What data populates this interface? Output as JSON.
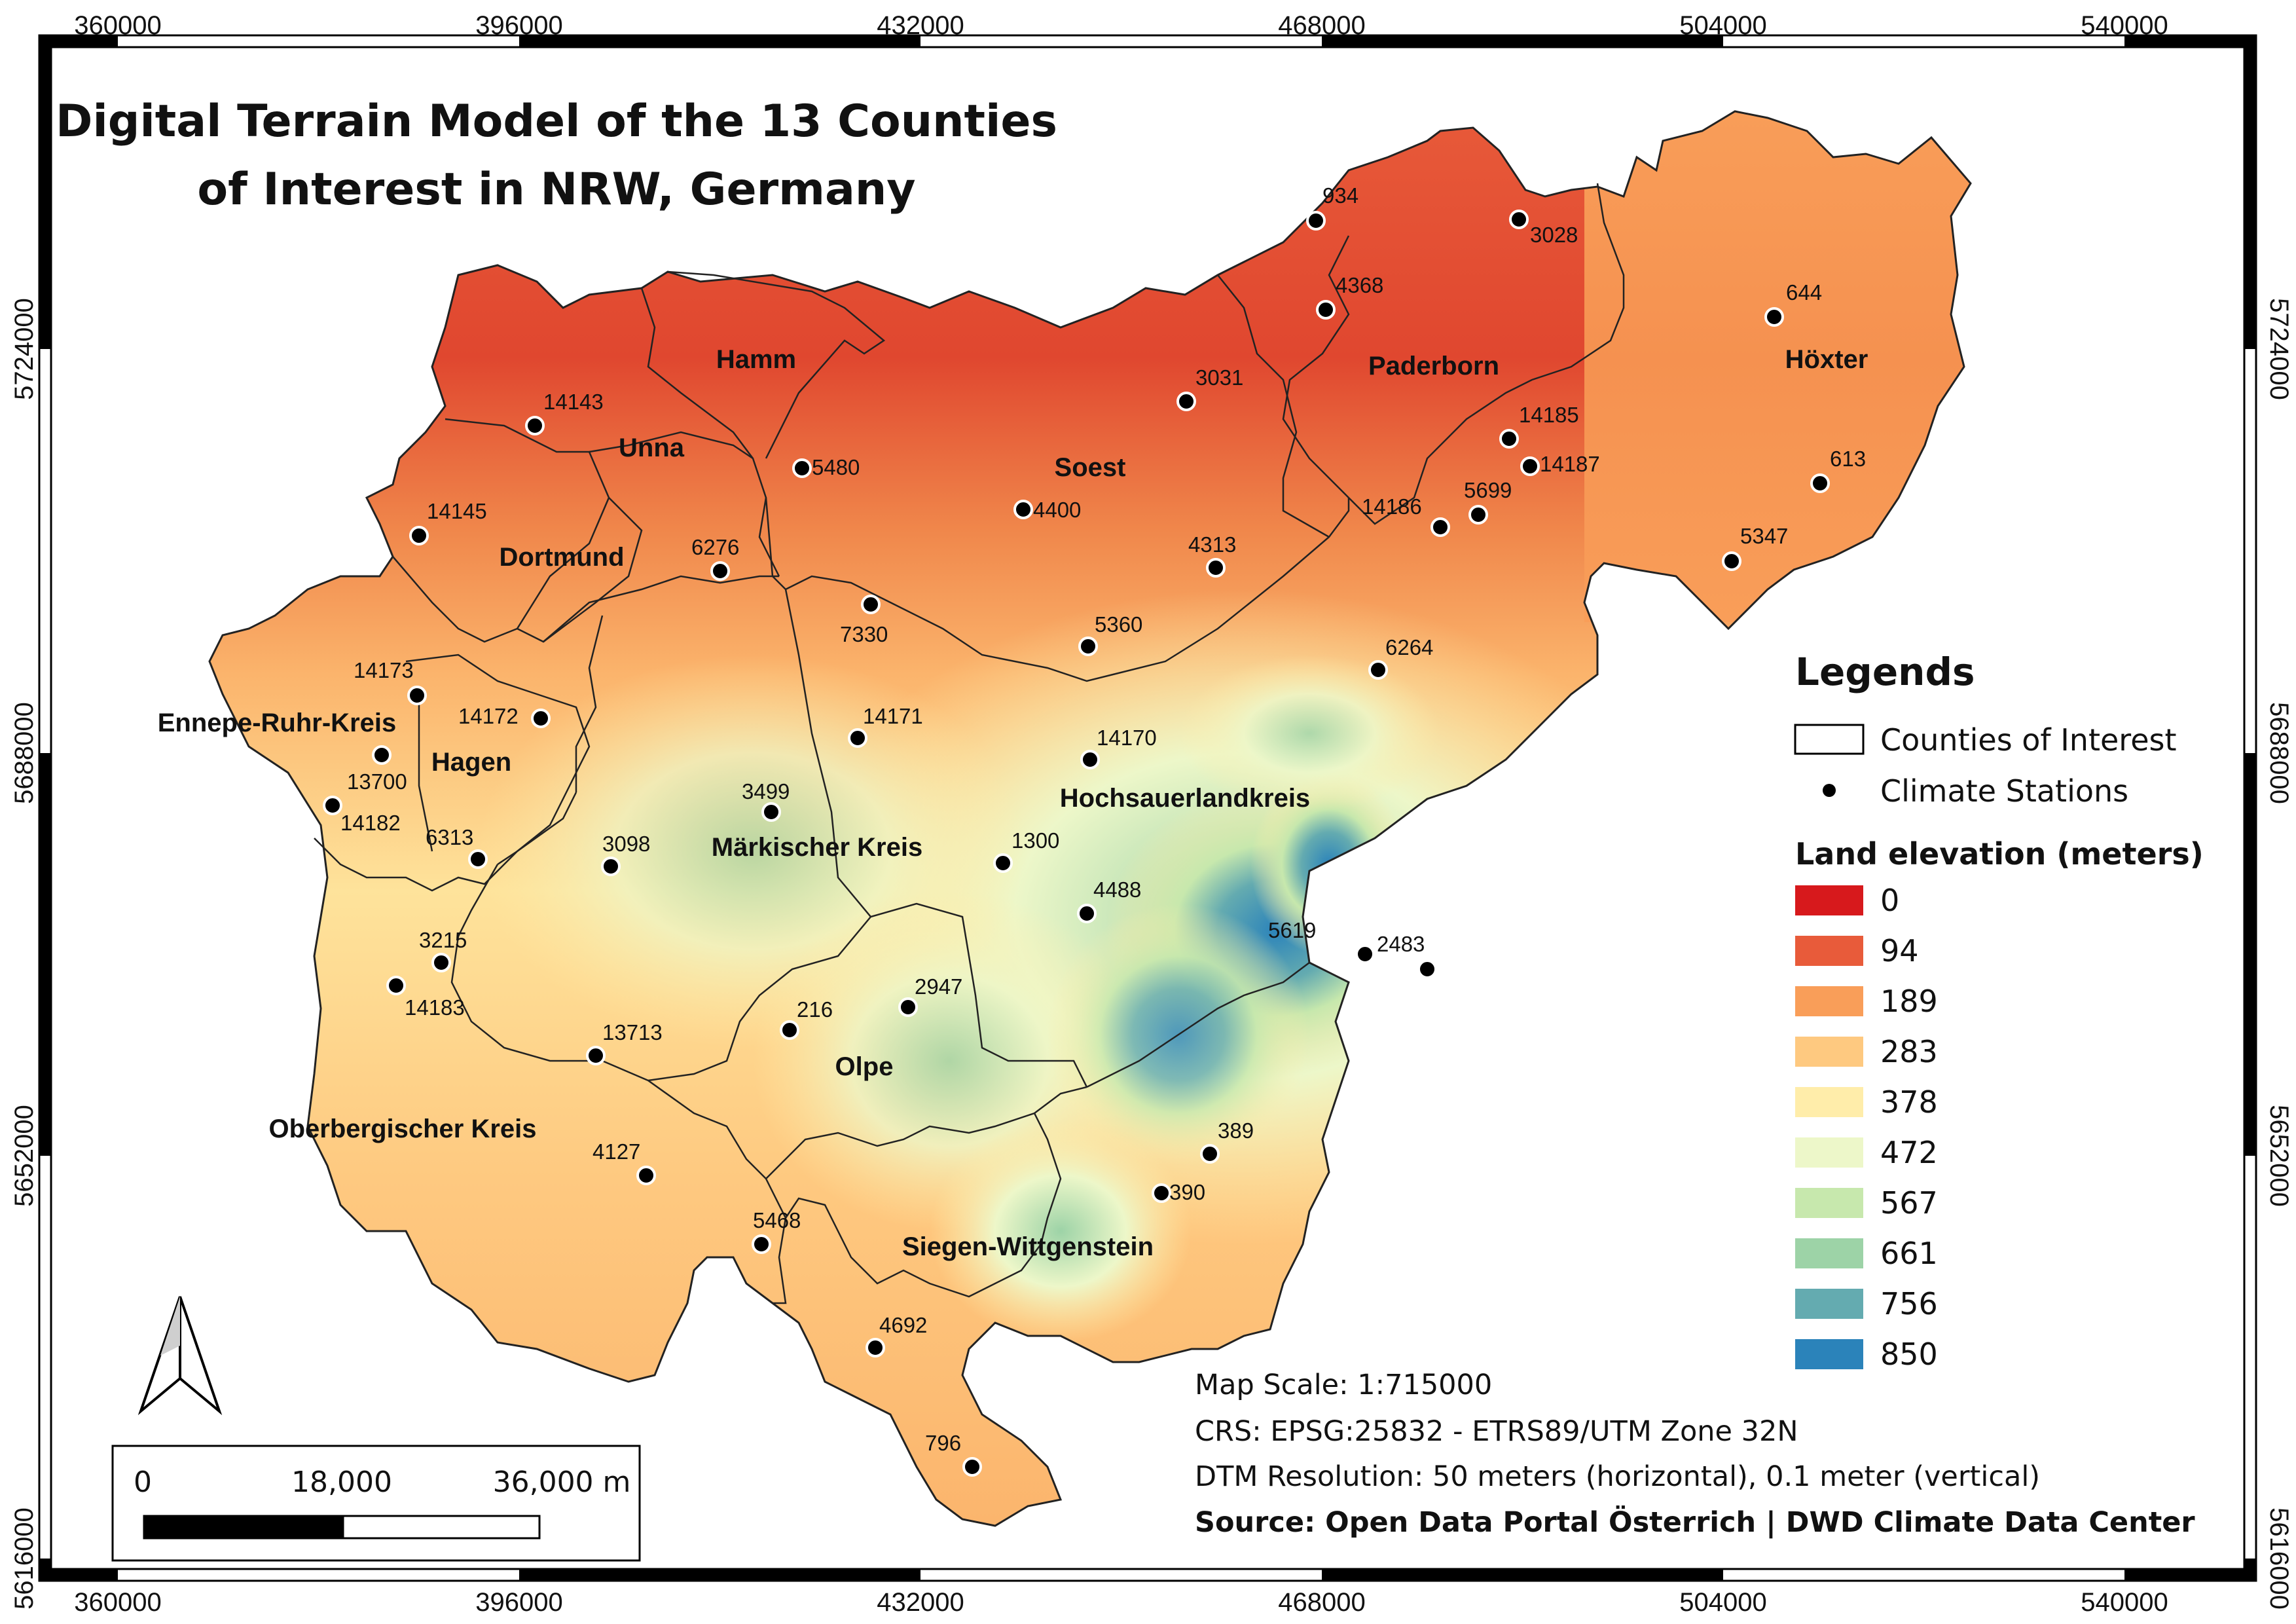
{
  "title": {
    "line1": "Digital Terrain Model of the 13 Counties",
    "line2": "of Interest in NRW, Germany"
  },
  "coords": {
    "x_ticks": [
      "360000",
      "396000",
      "432000",
      "468000",
      "504000",
      "540000"
    ],
    "y_ticks": [
      "5724000",
      "5688000",
      "5652000",
      "5616000"
    ]
  },
  "counties": [
    {
      "name": "Hamm"
    },
    {
      "name": "Unna"
    },
    {
      "name": "Soest"
    },
    {
      "name": "Paderborn"
    },
    {
      "name": "Höxter"
    },
    {
      "name": "Dortmund"
    },
    {
      "name": "Ennepe-Ruhr-Kreis"
    },
    {
      "name": "Hagen"
    },
    {
      "name": "Märkischer Kreis"
    },
    {
      "name": "Hochsauerlandkreis"
    },
    {
      "name": "Olpe"
    },
    {
      "name": "Oberbergischer Kreis"
    },
    {
      "name": "Siegen-Wittgenstein"
    }
  ],
  "stations": [
    {
      "id": "934"
    },
    {
      "id": "3028"
    },
    {
      "id": "4368"
    },
    {
      "id": "644"
    },
    {
      "id": "3031"
    },
    {
      "id": "14143"
    },
    {
      "id": "14185"
    },
    {
      "id": "14187"
    },
    {
      "id": "5480"
    },
    {
      "id": "613"
    },
    {
      "id": "4400"
    },
    {
      "id": "14186"
    },
    {
      "id": "5699"
    },
    {
      "id": "14145"
    },
    {
      "id": "6276"
    },
    {
      "id": "4313"
    },
    {
      "id": "5347"
    },
    {
      "id": "7330"
    },
    {
      "id": "5360"
    },
    {
      "id": "6264"
    },
    {
      "id": "14173"
    },
    {
      "id": "14172"
    },
    {
      "id": "14171"
    },
    {
      "id": "14170"
    },
    {
      "id": "13700"
    },
    {
      "id": "3499"
    },
    {
      "id": "14182"
    },
    {
      "id": "6313"
    },
    {
      "id": "3098"
    },
    {
      "id": "1300"
    },
    {
      "id": "4488"
    },
    {
      "id": "5619"
    },
    {
      "id": "2483"
    },
    {
      "id": "3215"
    },
    {
      "id": "14183"
    },
    {
      "id": "2947"
    },
    {
      "id": "216"
    },
    {
      "id": "13713"
    },
    {
      "id": "389"
    },
    {
      "id": "4127"
    },
    {
      "id": "390"
    },
    {
      "id": "5468"
    },
    {
      "id": "4692"
    },
    {
      "id": "796"
    }
  ],
  "legend": {
    "title": "Legends",
    "counties_label": "Counties of Interest",
    "stations_label": "Climate Stations",
    "elevation_title": "Land elevation (meters)",
    "elevation_classes": [
      {
        "label": "0",
        "color": "#d7191c"
      },
      {
        "label": "94",
        "color": "#e85b3a"
      },
      {
        "label": "189",
        "color": "#f99e59"
      },
      {
        "label": "283",
        "color": "#fec980"
      },
      {
        "label": "378",
        "color": "#ffedaa"
      },
      {
        "label": "472",
        "color": "#edf7c9"
      },
      {
        "label": "567",
        "color": "#c7e8ad"
      },
      {
        "label": "661",
        "color": "#9dd3a7"
      },
      {
        "label": "756",
        "color": "#64abb0"
      },
      {
        "label": "850",
        "color": "#2b83ba"
      }
    ]
  },
  "info": {
    "scale": "Map Scale: 1:715000",
    "crs": "CRS: EPSG:25832 - ETRS89/UTM Zone 32N",
    "resolution": "DTM Resolution: 50 meters (horizontal), 0.1 meter (vertical)",
    "source": "Source: Open Data Portal Österrich | DWD Climate Data Center"
  },
  "scalebar": {
    "label_0": "0",
    "label_mid": "18,000",
    "label_end": "36,000 m"
  }
}
